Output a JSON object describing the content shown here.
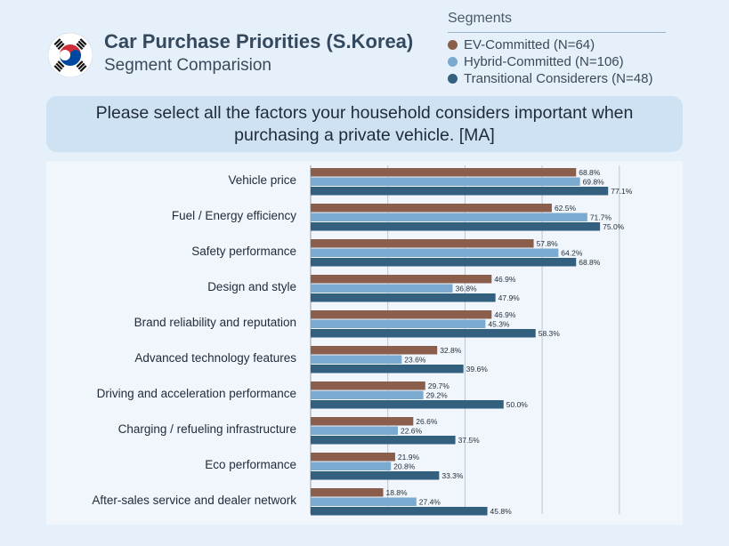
{
  "header": {
    "title": "Car Purchase Priorities (S.Korea)",
    "subtitle": "Segment Comparision"
  },
  "legend": {
    "title": "Segments",
    "items": [
      {
        "label": "EV-Committed (N=64)",
        "color": "#8b5e4b"
      },
      {
        "label": "Hybrid-Committed (N=106)",
        "color": "#7aaad0"
      },
      {
        "label": "Transitional Considerers (N=48)",
        "color": "#34607f"
      }
    ]
  },
  "question": "Please select all the factors your household considers important when purchasing a private vehicle. [MA]",
  "chart_data": {
    "type": "bar",
    "orientation": "horizontal",
    "categories": [
      "Vehicle price",
      "Fuel / Energy efficiency",
      "Safety performance",
      "Design and style",
      "Brand reliability and reputation",
      "Advanced technology features",
      "Driving and acceleration performance",
      "Charging / refueling infrastructure",
      "Eco performance",
      "After-sales service and dealer network"
    ],
    "series": [
      {
        "name": "EV-Committed (N=64)",
        "color": "#8b5e4b",
        "values": [
          68.8,
          62.5,
          57.8,
          46.9,
          46.9,
          32.8,
          29.7,
          26.6,
          21.9,
          18.8
        ]
      },
      {
        "name": "Hybrid-Committed (N=106)",
        "color": "#7aaad0",
        "values": [
          69.8,
          71.7,
          64.2,
          36.8,
          45.3,
          23.6,
          29.2,
          22.6,
          20.8,
          27.4
        ]
      },
      {
        "name": "Transitional Considerers (N=48)",
        "color": "#34607f",
        "values": [
          77.1,
          75.0,
          68.8,
          47.9,
          58.3,
          39.6,
          50.0,
          37.5,
          33.3,
          45.8
        ]
      }
    ],
    "value_suffix": "%",
    "xlim": [
      0,
      100
    ],
    "gridlines": [
      20,
      40,
      60,
      80
    ],
    "xlabel": "",
    "ylabel": ""
  }
}
